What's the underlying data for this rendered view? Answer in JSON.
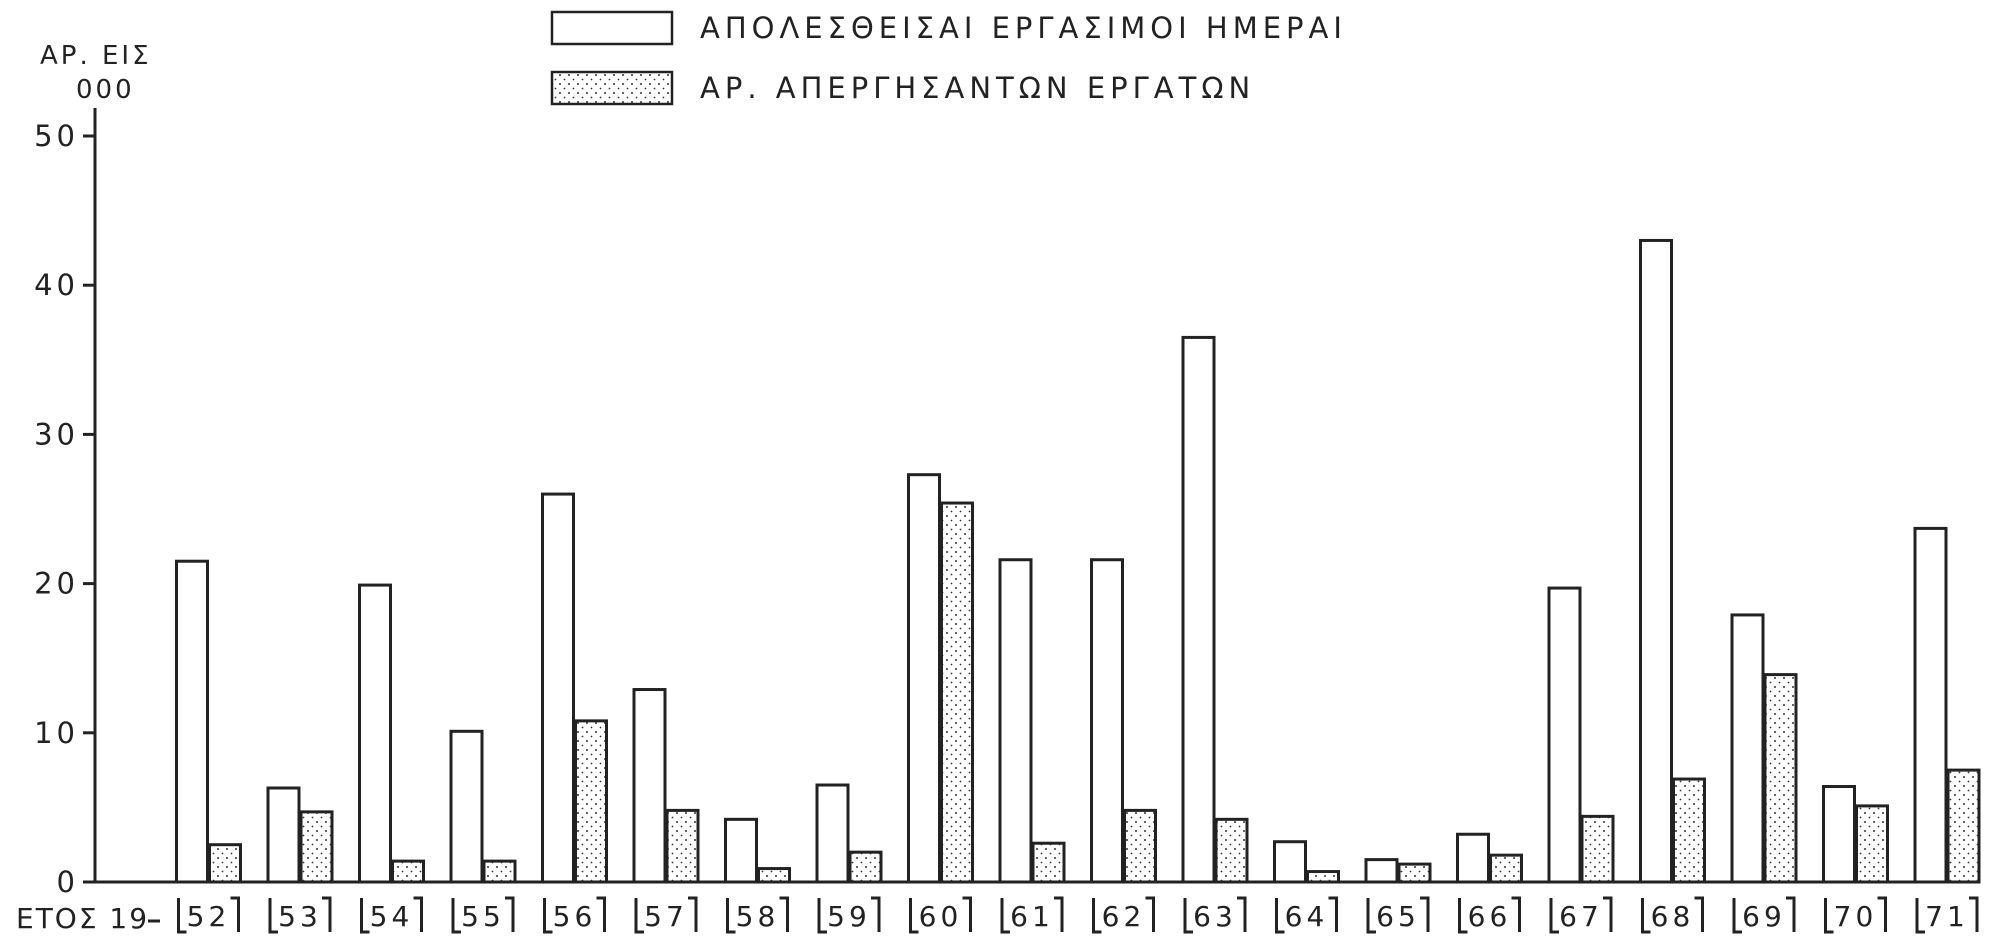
{
  "chart_data": {
    "type": "bar",
    "ylabel": [
      "ΑΡ. ΕΙΣ",
      "000"
    ],
    "xlabel": "ΕΤΟΣ 19",
    "ylim": [
      0,
      50
    ],
    "yticks": [
      0,
      10,
      20,
      30,
      40,
      50
    ],
    "grid": false,
    "legend_position": "top-center",
    "categories": [
      "52",
      "53",
      "54",
      "55",
      "56",
      "57",
      "58",
      "59",
      "60",
      "61",
      "62",
      "63",
      "64",
      "65",
      "66",
      "67",
      "68",
      "69",
      "70",
      "71"
    ],
    "series": [
      {
        "name": "ΑΠΟΛΕΣΘΕΙΣΑΙ ΕΡΓΑΣΙΜΟΙ ΗΜΕΡΑΙ",
        "pattern": "plain",
        "values": [
          21.5,
          6.3,
          19.9,
          10.1,
          26.0,
          12.9,
          4.2,
          6.5,
          27.3,
          21.6,
          21.6,
          36.5,
          2.7,
          1.5,
          3.2,
          19.7,
          43.0,
          17.9,
          6.4,
          23.7
        ]
      },
      {
        "name": "ΑΡ. ΑΠΕΡΓΗΣΑΝΤΩΝ ΕΡΓΑΤΩΝ",
        "pattern": "dotted",
        "values": [
          2.5,
          4.7,
          1.4,
          1.4,
          10.8,
          4.8,
          0.9,
          2.0,
          25.4,
          2.6,
          4.8,
          4.2,
          0.7,
          1.2,
          1.8,
          4.4,
          6.9,
          13.9,
          5.1,
          7.5
        ]
      }
    ]
  }
}
